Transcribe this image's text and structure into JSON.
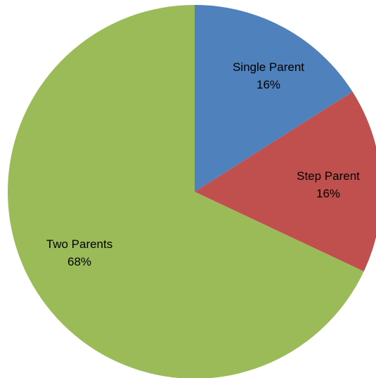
{
  "chart_data": {
    "type": "pie",
    "title": "",
    "legend": "none",
    "slices": [
      {
        "name": "Single Parent",
        "value": 16,
        "label": "16%",
        "color": "#4F81BD"
      },
      {
        "name": "Step Parent",
        "value": 16,
        "label": "16%",
        "color": "#C0504D"
      },
      {
        "name": "Two Parents",
        "value": 68,
        "label": "68%",
        "color": "#9BBB59"
      }
    ]
  }
}
